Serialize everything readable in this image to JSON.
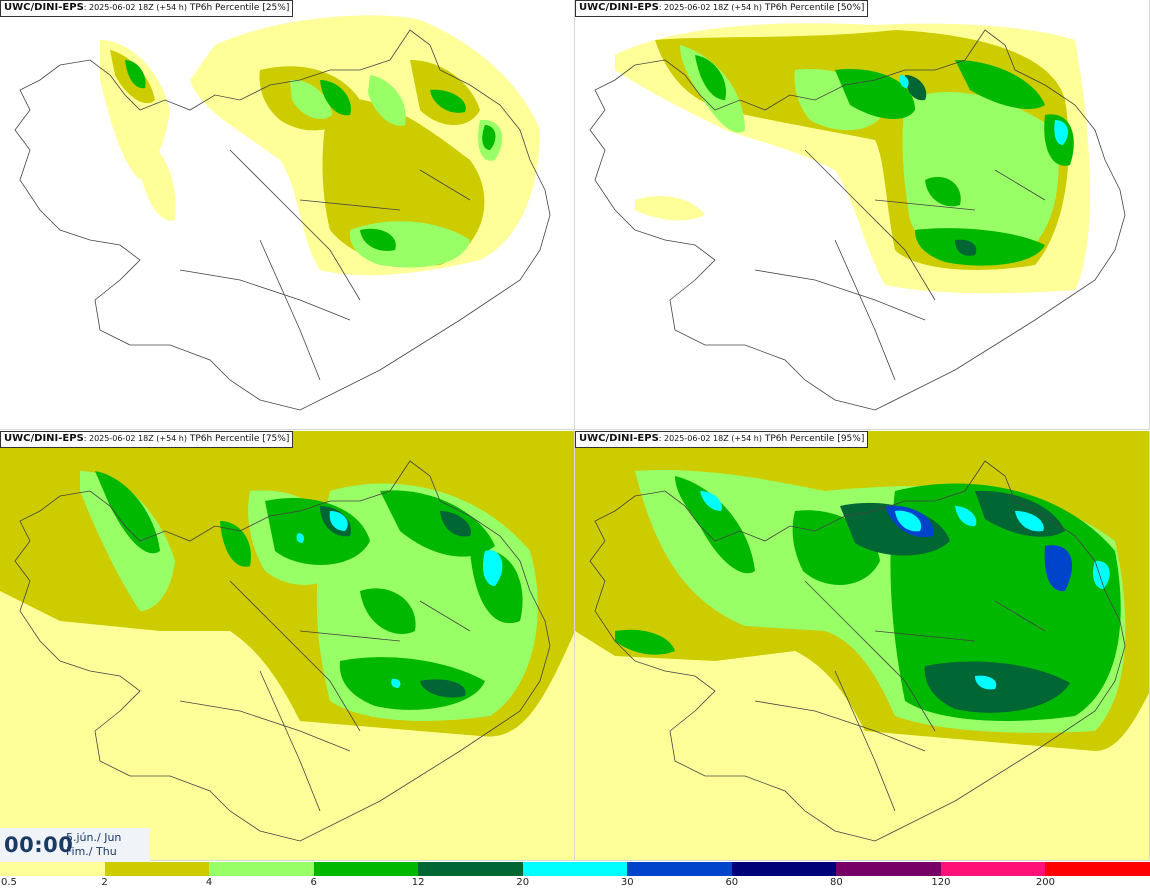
{
  "panels": [
    {
      "model": "UWC/DINI-EPS",
      "run": ": 2025-06-02 18Z (+54 h)",
      "field": " TP6h Percentile [25%]"
    },
    {
      "model": "UWC/DINI-EPS",
      "run": ": 2025-06-02 18Z (+54 h)",
      "field": " TP6h Percentile [50%]"
    },
    {
      "model": "UWC/DINI-EPS",
      "run": ": 2025-06-02 18Z (+54 h)",
      "field": " TP6h Percentile [75%]"
    },
    {
      "model": "UWC/DINI-EPS",
      "run": ": 2025-06-02 18Z (+54 h)",
      "field": " TP6h Percentile [95%]"
    }
  ],
  "valid_time": {
    "time": "00:00",
    "date_line1": "5.jún./ Jun",
    "date_line2": "Fim./ Thu"
  },
  "legend": {
    "ticks": [
      "0.5",
      "2",
      "4",
      "6",
      "12",
      "20",
      "30",
      "60",
      "80",
      "120",
      "200"
    ],
    "colors": [
      "#ffff99",
      "#cccc00",
      "#99ff66",
      "#00b800",
      "#006633",
      "#00ffff",
      "#0044cc",
      "#000077",
      "#770066",
      "#ff1177",
      "#ff0000"
    ]
  },
  "map_colors": {
    "light_yellow": "#ffff99",
    "olive": "#cccc00",
    "light_green": "#99ff66",
    "green": "#00b800",
    "dark_green": "#006633",
    "cyan": "#00ffff",
    "blue": "#0044cc",
    "outline": "#444444"
  }
}
